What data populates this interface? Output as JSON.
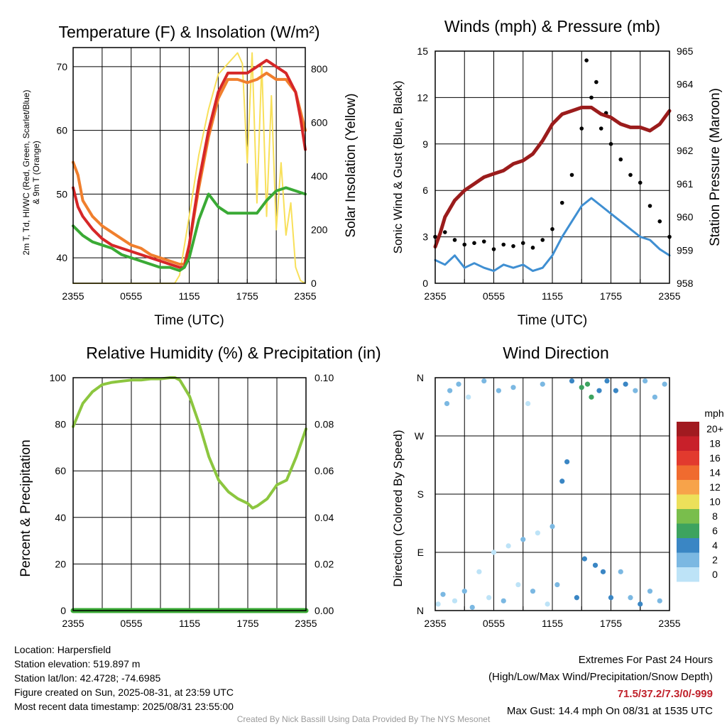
{
  "panels": {
    "temperature": {
      "title": "Temperature (F) & Insolation (W/m²)",
      "ylabel_left_line1": "2m T, Td, HI/WC (Red, Green, Scarlet/Blue)",
      "ylabel_left_line2": "& 9m T (Orange)",
      "ylabel_right": "Solar Insolation (Yellow)",
      "xlabel": "Time (UTC)"
    },
    "winds": {
      "title": "Winds (mph) & Pressure (mb)",
      "ylabel_left": "Sonic Wind & Gust (Blue, Black)",
      "ylabel_right": "Station Pressure (Maroon)",
      "xlabel": "Time (UTC)"
    },
    "humidity": {
      "title": "Relative Humidity (%) & Precipitation (in)",
      "ylabel_left": "Percent & Precipitation"
    },
    "direction": {
      "title": "Wind Direction",
      "ylabel_left": "Direction (Colored By Speed)",
      "legend_title": "mph",
      "legend_labels": [
        "20+",
        "18",
        "16",
        "14",
        "12",
        "10",
        "8",
        "6",
        "4",
        "2",
        "0"
      ],
      "legend_colors": [
        "#a11a20",
        "#c8202a",
        "#e23a2e",
        "#f06b2f",
        "#f7a34a",
        "#ece05a",
        "#79be4c",
        "#3da35f",
        "#3a86c4",
        "#7bb8e2",
        "#bde3f7"
      ]
    }
  },
  "footer": {
    "location": "Location: Harpersfield",
    "elevation": "Station elevation: 519.897 m",
    "latlon": "Station lat/lon: 42.4728; -74.6985",
    "created": "Figure created on Sun, 2025-08-31, at 23:59 UTC",
    "recent": "Most recent data timestamp: 2025/08/31 23:55:00",
    "extremes_title": "Extremes For Past 24 Hours",
    "extremes_sub": "(High/Low/Max Wind/Precipitation/Snow Depth)",
    "extremes_values": "71.5/37.2/7.3/0/-999",
    "max_gust": "Max Gust: 14.4 mph On 08/31 at 1535 UTC",
    "credit": "Created By Nick Bassill Using Data Provided By The NYS Mesonet"
  },
  "chart_data": [
    {
      "type": "line",
      "title": "Temperature (F) & Insolation (W/m²)",
      "xlabel": "Time (UTC)",
      "x_ticks": [
        "2355",
        "0555",
        "1155",
        "1755",
        "2355"
      ],
      "x_hours": [
        0,
        3,
        6,
        9,
        12,
        15,
        18,
        21,
        24
      ],
      "ylim": [
        36,
        73
      ],
      "y_ticks": [
        40,
        50,
        60,
        70
      ],
      "y2lim": [
        0,
        880
      ],
      "y2_ticks": [
        0,
        200,
        400,
        600,
        800
      ],
      "grid": true,
      "series": [
        {
          "color": "#d62728",
          "axis": "left",
          "x": [
            0,
            0.5,
            1,
            2,
            3,
            4,
            5,
            6,
            7,
            8,
            9,
            10,
            11,
            11.5,
            12,
            13,
            14,
            15,
            16,
            17,
            18,
            19,
            20,
            21,
            22,
            23,
            23.5,
            24
          ],
          "y": [
            51,
            48,
            46.5,
            44.5,
            43,
            42,
            41.5,
            41,
            40.5,
            40,
            39.5,
            39,
            38.5,
            38.5,
            42,
            52,
            60,
            66,
            69,
            69,
            69,
            70,
            71,
            70,
            69,
            66,
            62,
            57
          ]
        },
        {
          "color": "#f07f2d",
          "axis": "left",
          "x": [
            0,
            0.5,
            1,
            2,
            3,
            4,
            5,
            6,
            7,
            8,
            9,
            10,
            11,
            11.5,
            12,
            13,
            14,
            15,
            16,
            17,
            18,
            19,
            20,
            21,
            22,
            23,
            23.5,
            24
          ],
          "y": [
            55,
            53,
            49,
            46.5,
            45,
            44,
            43,
            42,
            41.5,
            40.5,
            40,
            39.5,
            39,
            39,
            42,
            51,
            59,
            65,
            68,
            68,
            67.5,
            68,
            69,
            68,
            68,
            66,
            63,
            60
          ]
        },
        {
          "color": "#3aaa35",
          "axis": "left",
          "x": [
            0,
            1,
            2,
            3,
            4,
            5,
            6,
            7,
            8,
            9,
            10,
            11,
            11.5,
            12,
            13,
            14,
            15,
            16,
            17,
            18,
            19,
            20,
            21,
            22,
            23,
            24
          ],
          "y": [
            45,
            43.5,
            42.5,
            42,
            41.5,
            40.5,
            40,
            39.5,
            39,
            38.5,
            38.5,
            38,
            38.5,
            40,
            46,
            50,
            48,
            47,
            47,
            47,
            47,
            49,
            50.5,
            51,
            50.5,
            50
          ]
        },
        {
          "color": "#f8e05a",
          "axis": "right",
          "x": [
            0,
            10.5,
            11,
            12,
            13,
            14,
            15,
            16,
            17,
            17.5,
            18,
            18.5,
            19,
            19.5,
            20,
            20.5,
            21,
            21.5,
            22,
            22.5,
            23,
            23.5,
            24
          ],
          "y": [
            0,
            0,
            30,
            250,
            480,
            650,
            780,
            820,
            860,
            820,
            450,
            860,
            300,
            820,
            250,
            700,
            200,
            450,
            180,
            300,
            60,
            10,
            0
          ]
        }
      ]
    },
    {
      "type": "line",
      "title": "Winds (mph) & Pressure (mb)",
      "xlabel": "Time (UTC)",
      "x_ticks": [
        "2355",
        "0555",
        "1155",
        "1755",
        "2355"
      ],
      "x_hours": [
        0,
        3,
        6,
        9,
        12,
        15,
        18,
        21,
        24
      ],
      "ylim": [
        0,
        15
      ],
      "y_ticks": [
        0,
        3,
        6,
        9,
        12,
        15
      ],
      "y2lim": [
        958,
        965
      ],
      "y2_ticks": [
        958,
        959,
        960,
        961,
        962,
        963,
        964,
        965
      ],
      "grid": true,
      "series": [
        {
          "color": "#9b1c1c",
          "axis": "right",
          "x": [
            0,
            0.5,
            1,
            2,
            3,
            4,
            5,
            6,
            7,
            8,
            9,
            10,
            11,
            12,
            13,
            14,
            15,
            16,
            17,
            18,
            19,
            20,
            21,
            22,
            23,
            24
          ],
          "y": [
            959.1,
            959.5,
            960.0,
            960.5,
            960.8,
            961.0,
            961.2,
            961.3,
            961.4,
            961.6,
            961.7,
            961.9,
            962.3,
            962.8,
            963.1,
            963.2,
            963.3,
            963.3,
            963.1,
            963.0,
            962.8,
            962.7,
            962.7,
            962.6,
            962.8,
            963.2
          ]
        },
        {
          "color": "#3f8fd2",
          "axis": "left",
          "x": [
            0,
            1,
            2,
            3,
            4,
            5,
            6,
            7,
            8,
            9,
            10,
            11,
            12,
            13,
            14,
            15,
            16,
            17,
            18,
            19,
            20,
            21,
            22,
            23,
            24
          ],
          "y": [
            1.5,
            1.2,
            1.8,
            1.0,
            1.3,
            1.0,
            0.8,
            1.2,
            1.0,
            1.2,
            0.8,
            1.0,
            1.8,
            3.0,
            4.0,
            5.0,
            5.5,
            5.0,
            4.5,
            4.0,
            3.5,
            3.0,
            2.8,
            2.2,
            1.8
          ]
        },
        {
          "color": "#000000",
          "axis": "left",
          "type": "scatter",
          "x": [
            0,
            1,
            2,
            3,
            4,
            5,
            6,
            7,
            8,
            9,
            10,
            11,
            12,
            13,
            14,
            15,
            15.5,
            16,
            16.5,
            17,
            17.5,
            18,
            19,
            20,
            21,
            22,
            23,
            24
          ],
          "y": [
            3.0,
            3.3,
            2.8,
            2.5,
            2.6,
            2.7,
            2.2,
            2.5,
            2.4,
            2.6,
            2.3,
            2.8,
            3.5,
            5.2,
            7.0,
            10.0,
            14.4,
            12.0,
            13.0,
            10.0,
            11.0,
            9.0,
            8.0,
            7.0,
            6.5,
            5.0,
            4.0,
            3.0
          ]
        }
      ]
    },
    {
      "type": "line",
      "title": "Relative Humidity (%) & Precipitation (in)",
      "x_ticks": [
        "2355",
        "0555",
        "1155",
        "1755",
        "2355"
      ],
      "x_hours": [
        0,
        3,
        6,
        9,
        12,
        15,
        18,
        21,
        24
      ],
      "ylim": [
        0,
        100
      ],
      "y_ticks": [
        0,
        20,
        40,
        60,
        80,
        100
      ],
      "y2lim": [
        0,
        0.1
      ],
      "y2_ticks": [
        "0.00",
        "0.02",
        "0.04",
        "0.06",
        "0.08",
        "0.10"
      ],
      "grid": true,
      "series": [
        {
          "color": "#8cc63f",
          "axis": "left",
          "x": [
            0,
            0.5,
            1,
            2,
            3,
            4,
            5,
            6,
            7,
            8,
            9,
            10,
            10.5,
            11,
            12,
            13,
            14,
            15,
            16,
            17,
            18,
            18.5,
            19,
            20,
            21,
            22,
            23,
            24
          ],
          "y": [
            79,
            84,
            89,
            94,
            97,
            98,
            98.5,
            99,
            99,
            99.5,
            99.5,
            100,
            100,
            99,
            92,
            80,
            66,
            56,
            51,
            48,
            46,
            44,
            45,
            48,
            54,
            56,
            66,
            78
          ]
        },
        {
          "color": "#3aaa35",
          "axis": "right",
          "x": [
            0,
            24
          ],
          "y": [
            0,
            0
          ]
        }
      ]
    },
    {
      "type": "scatter",
      "title": "Wind Direction",
      "ylabel": "Direction (Colored By Speed)",
      "x_ticks": [
        "2355",
        "0555",
        "1155",
        "1755",
        "2355"
      ],
      "x_hours": [
        0,
        3,
        6,
        9,
        12,
        15,
        18,
        21,
        24
      ],
      "ylim": [
        0,
        360
      ],
      "y_ticks": [
        "N",
        "E",
        "S",
        "W",
        "N"
      ],
      "grid": true,
      "legend": {
        "title": "mph",
        "position": "right"
      },
      "points": [
        {
          "x": 0.3,
          "y": 10,
          "s": 1
        },
        {
          "x": 0.8,
          "y": 25,
          "s": 2
        },
        {
          "x": 1.2,
          "y": 320,
          "s": 2
        },
        {
          "x": 1.5,
          "y": 340,
          "s": 3
        },
        {
          "x": 2.0,
          "y": 15,
          "s": 1
        },
        {
          "x": 2.4,
          "y": 350,
          "s": 2
        },
        {
          "x": 3.0,
          "y": 30,
          "s": 2
        },
        {
          "x": 3.4,
          "y": 330,
          "s": 1
        },
        {
          "x": 3.8,
          "y": 5,
          "s": 2
        },
        {
          "x": 4.5,
          "y": 60,
          "s": 1
        },
        {
          "x": 5.0,
          "y": 355,
          "s": 2
        },
        {
          "x": 5.5,
          "y": 20,
          "s": 1
        },
        {
          "x": 6.0,
          "y": 90,
          "s": 1
        },
        {
          "x": 6.5,
          "y": 340,
          "s": 3
        },
        {
          "x": 7.0,
          "y": 15,
          "s": 2
        },
        {
          "x": 7.5,
          "y": 100,
          "s": 1
        },
        {
          "x": 8.0,
          "y": 345,
          "s": 2
        },
        {
          "x": 8.5,
          "y": 40,
          "s": 1
        },
        {
          "x": 9.0,
          "y": 110,
          "s": 2
        },
        {
          "x": 9.5,
          "y": 320,
          "s": 1
        },
        {
          "x": 10.0,
          "y": 30,
          "s": 2
        },
        {
          "x": 10.5,
          "y": 120,
          "s": 1
        },
        {
          "x": 11.0,
          "y": 350,
          "s": 2
        },
        {
          "x": 11.5,
          "y": 10,
          "s": 1
        },
        {
          "x": 12.0,
          "y": 130,
          "s": 3
        },
        {
          "x": 12.5,
          "y": 40,
          "s": 2
        },
        {
          "x": 13.0,
          "y": 200,
          "s": 4
        },
        {
          "x": 13.5,
          "y": 230,
          "s": 4
        },
        {
          "x": 14.0,
          "y": 355,
          "s": 5
        },
        {
          "x": 14.5,
          "y": 20,
          "s": 4
        },
        {
          "x": 15.0,
          "y": 345,
          "s": 6
        },
        {
          "x": 15.3,
          "y": 80,
          "s": 4
        },
        {
          "x": 15.6,
          "y": 350,
          "s": 7
        },
        {
          "x": 16.0,
          "y": 330,
          "s": 6
        },
        {
          "x": 16.4,
          "y": 70,
          "s": 4
        },
        {
          "x": 16.8,
          "y": 340,
          "s": 5
        },
        {
          "x": 17.2,
          "y": 60,
          "s": 4
        },
        {
          "x": 17.6,
          "y": 355,
          "s": 4
        },
        {
          "x": 18.0,
          "y": 20,
          "s": 5
        },
        {
          "x": 18.5,
          "y": 340,
          "s": 4
        },
        {
          "x": 19.0,
          "y": 60,
          "s": 3
        },
        {
          "x": 19.5,
          "y": 350,
          "s": 4
        },
        {
          "x": 20.0,
          "y": 20,
          "s": 3
        },
        {
          "x": 20.5,
          "y": 340,
          "s": 3
        },
        {
          "x": 21.0,
          "y": 10,
          "s": 4
        },
        {
          "x": 21.5,
          "y": 355,
          "s": 3
        },
        {
          "x": 22.0,
          "y": 30,
          "s": 3
        },
        {
          "x": 22.5,
          "y": 330,
          "s": 2
        },
        {
          "x": 23.0,
          "y": 15,
          "s": 2
        },
        {
          "x": 23.5,
          "y": 350,
          "s": 3
        }
      ]
    }
  ]
}
